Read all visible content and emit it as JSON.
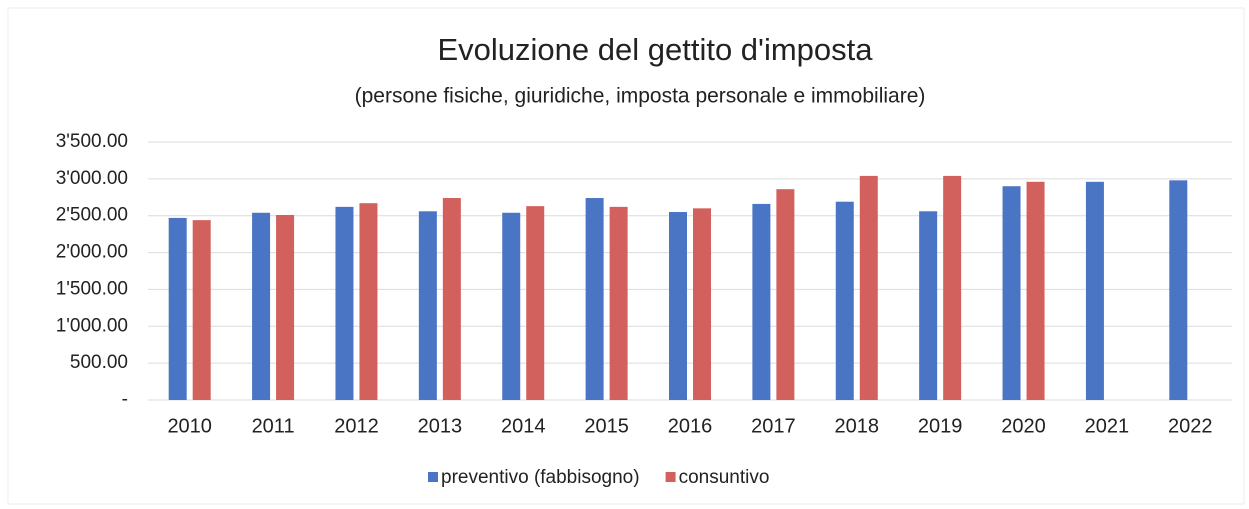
{
  "chart_data": {
    "type": "bar",
    "title": "Evoluzione del gettito d'imposta",
    "subtitle": "(persone fisiche, giuridiche, imposta personale e immobiliare)",
    "categories": [
      "2010",
      "2011",
      "2012",
      "2013",
      "2014",
      "2015",
      "2016",
      "2017",
      "2018",
      "2019",
      "2020",
      "2021",
      "2022"
    ],
    "series": [
      {
        "name": "preventivo (fabbisogno)",
        "color": "#4a74c4",
        "values": [
          2470,
          2540,
          2620,
          2560,
          2540,
          2740,
          2550,
          2660,
          2690,
          2560,
          2900,
          2960,
          2980
        ]
      },
      {
        "name": "consuntivo",
        "color": "#d2605d",
        "values": [
          2440,
          2510,
          2670,
          2740,
          2630,
          2620,
          2600,
          2860,
          3040,
          3040,
          2960,
          null,
          null
        ]
      }
    ],
    "ylim": [
      0,
      3500
    ],
    "yticks": [
      {
        "value": 0,
        "label": "-"
      },
      {
        "value": 500,
        "label": "500.00"
      },
      {
        "value": 1000,
        "label": "1'000.00"
      },
      {
        "value": 1500,
        "label": "1'500.00"
      },
      {
        "value": 2000,
        "label": "2'000.00"
      },
      {
        "value": 2500,
        "label": "2'500.00"
      },
      {
        "value": 3000,
        "label": "3'000.00"
      },
      {
        "value": 3500,
        "label": "3'500.00"
      }
    ],
    "grid": true,
    "legend": "bottom"
  }
}
